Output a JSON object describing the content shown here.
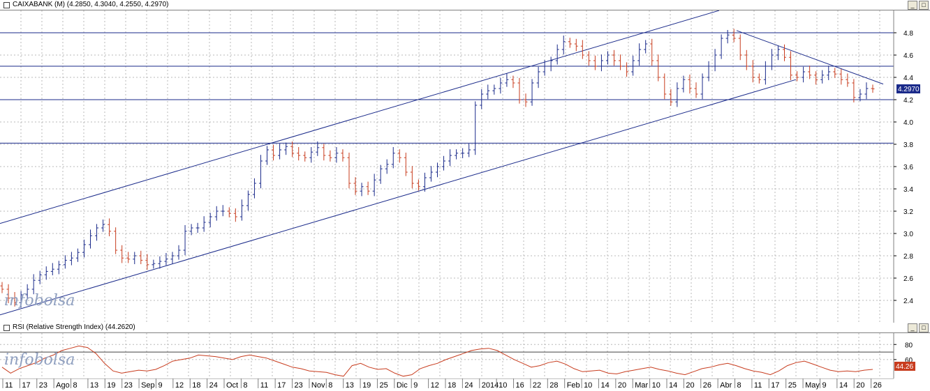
{
  "main_panel": {
    "title": "CAIXABANK (M) (4.2850, 4.3040, 4.2550, 4.2970)",
    "watermark": "infobolsa",
    "last_value_label": "4.2970"
  },
  "rsi_panel": {
    "title": "RSI (Relative Strength Index) (44.2620)",
    "watermark": "infobolsa",
    "last_value_label": "44.26"
  },
  "colors": {
    "up": "#1a2a8a",
    "down": "#c83c1e",
    "line": "#1a2a8a",
    "rsi": "#c83c1e",
    "grid": "#b8b8b8"
  },
  "chart_data": [
    {
      "type": "ohlc",
      "name": "CAIXABANK",
      "ylim": [
        2.2,
        5.0
      ],
      "y_ticks": [
        2.4,
        2.6,
        2.8,
        3.0,
        3.2,
        3.4,
        3.6,
        3.8,
        4.0,
        4.2,
        4.4,
        4.6,
        4.8
      ],
      "x_labels": [
        "11",
        "17",
        "23",
        "Ago",
        "8",
        "13",
        "19",
        "23",
        "Sep",
        "9",
        "12",
        "18",
        "24",
        "Oct",
        "8",
        "11",
        "17",
        "23",
        "Nov",
        "8",
        "13",
        "19",
        "25",
        "Dic",
        "9",
        "12",
        "18",
        "24",
        "2014",
        "10",
        "16",
        "22",
        "28",
        "Feb",
        "10",
        "14",
        "20",
        "Mar",
        "10",
        "14",
        "20",
        "26",
        "Abr",
        "8",
        "11",
        "17",
        "25",
        "May",
        "9",
        "14",
        "20",
        "26"
      ],
      "horizontal_levels": [
        4.8,
        4.5,
        4.2,
        3.81
      ],
      "channel_upper": [
        [
          0,
          3.09
        ],
        [
          1030,
          5.0
        ]
      ],
      "channel_lower": [
        [
          0,
          2.27
        ],
        [
          1140,
          4.38
        ]
      ],
      "resistance_line": [
        [
          1055,
          4.82
        ],
        [
          1265,
          4.34
        ]
      ],
      "last_close": 4.297,
      "closes": [
        2.5,
        2.42,
        2.38,
        2.45,
        2.5,
        2.58,
        2.63,
        2.66,
        2.68,
        2.72,
        2.76,
        2.78,
        2.83,
        2.9,
        2.98,
        3.05,
        3.08,
        3.02,
        2.85,
        2.78,
        2.77,
        2.8,
        2.76,
        2.72,
        2.73,
        2.75,
        2.77,
        2.8,
        2.85,
        3.02,
        3.05,
        3.05,
        3.1,
        3.15,
        3.2,
        3.2,
        3.18,
        3.15,
        3.25,
        3.35,
        3.45,
        3.65,
        3.75,
        3.7,
        3.75,
        3.78,
        3.72,
        3.7,
        3.68,
        3.73,
        3.77,
        3.7,
        3.68,
        3.72,
        3.68,
        3.45,
        3.38,
        3.42,
        3.38,
        3.48,
        3.58,
        3.62,
        3.72,
        3.68,
        3.55,
        3.45,
        3.42,
        3.5,
        3.55,
        3.6,
        3.65,
        3.7,
        3.72,
        3.72,
        3.75,
        4.15,
        4.25,
        4.28,
        4.3,
        4.35,
        4.38,
        4.35,
        4.2,
        4.18,
        4.35,
        4.45,
        4.5,
        4.55,
        4.65,
        4.72,
        4.7,
        4.68,
        4.6,
        4.55,
        4.5,
        4.55,
        4.6,
        4.55,
        4.5,
        4.45,
        4.55,
        4.65,
        4.7,
        4.55,
        4.4,
        4.25,
        4.18,
        4.3,
        4.38,
        4.3,
        4.25,
        4.4,
        4.5,
        4.6,
        4.75,
        4.78,
        4.75,
        4.6,
        4.5,
        4.4,
        4.38,
        4.5,
        4.6,
        4.65,
        4.58,
        4.42,
        4.4,
        4.45,
        4.42,
        4.38,
        4.42,
        4.45,
        4.43,
        4.38,
        4.35,
        4.22,
        4.25,
        4.3,
        4.297
      ],
      "x_range": [
        0,
        1280
      ]
    },
    {
      "type": "line",
      "name": "RSI",
      "ylim": [
        35,
        95
      ],
      "y_ticks": [
        60,
        80
      ],
      "levels": [
        70
      ],
      "last_value": 44.262,
      "values": [
        50,
        42,
        48,
        52,
        56,
        62,
        66,
        72,
        75,
        78,
        76,
        68,
        55,
        45,
        42,
        44,
        46,
        45,
        47,
        52,
        58,
        60,
        62,
        66,
        65,
        64,
        62,
        60,
        64,
        66,
        64,
        62,
        58,
        54,
        50,
        48,
        45,
        44,
        43,
        40,
        38,
        52,
        55,
        50,
        47,
        48,
        42,
        38,
        40,
        48,
        52,
        55,
        60,
        64,
        68,
        72,
        74,
        75,
        72,
        66,
        60,
        55,
        50,
        52,
        56,
        58,
        54,
        48,
        44,
        45,
        46,
        42,
        41,
        44,
        46,
        48,
        50,
        47,
        45,
        42,
        40,
        44,
        48,
        50,
        53,
        55,
        52,
        48,
        45,
        43,
        40,
        45,
        52,
        56,
        58,
        54,
        50,
        46,
        44,
        45,
        44,
        46,
        47
      ],
      "x_range": [
        0,
        1280
      ]
    }
  ]
}
